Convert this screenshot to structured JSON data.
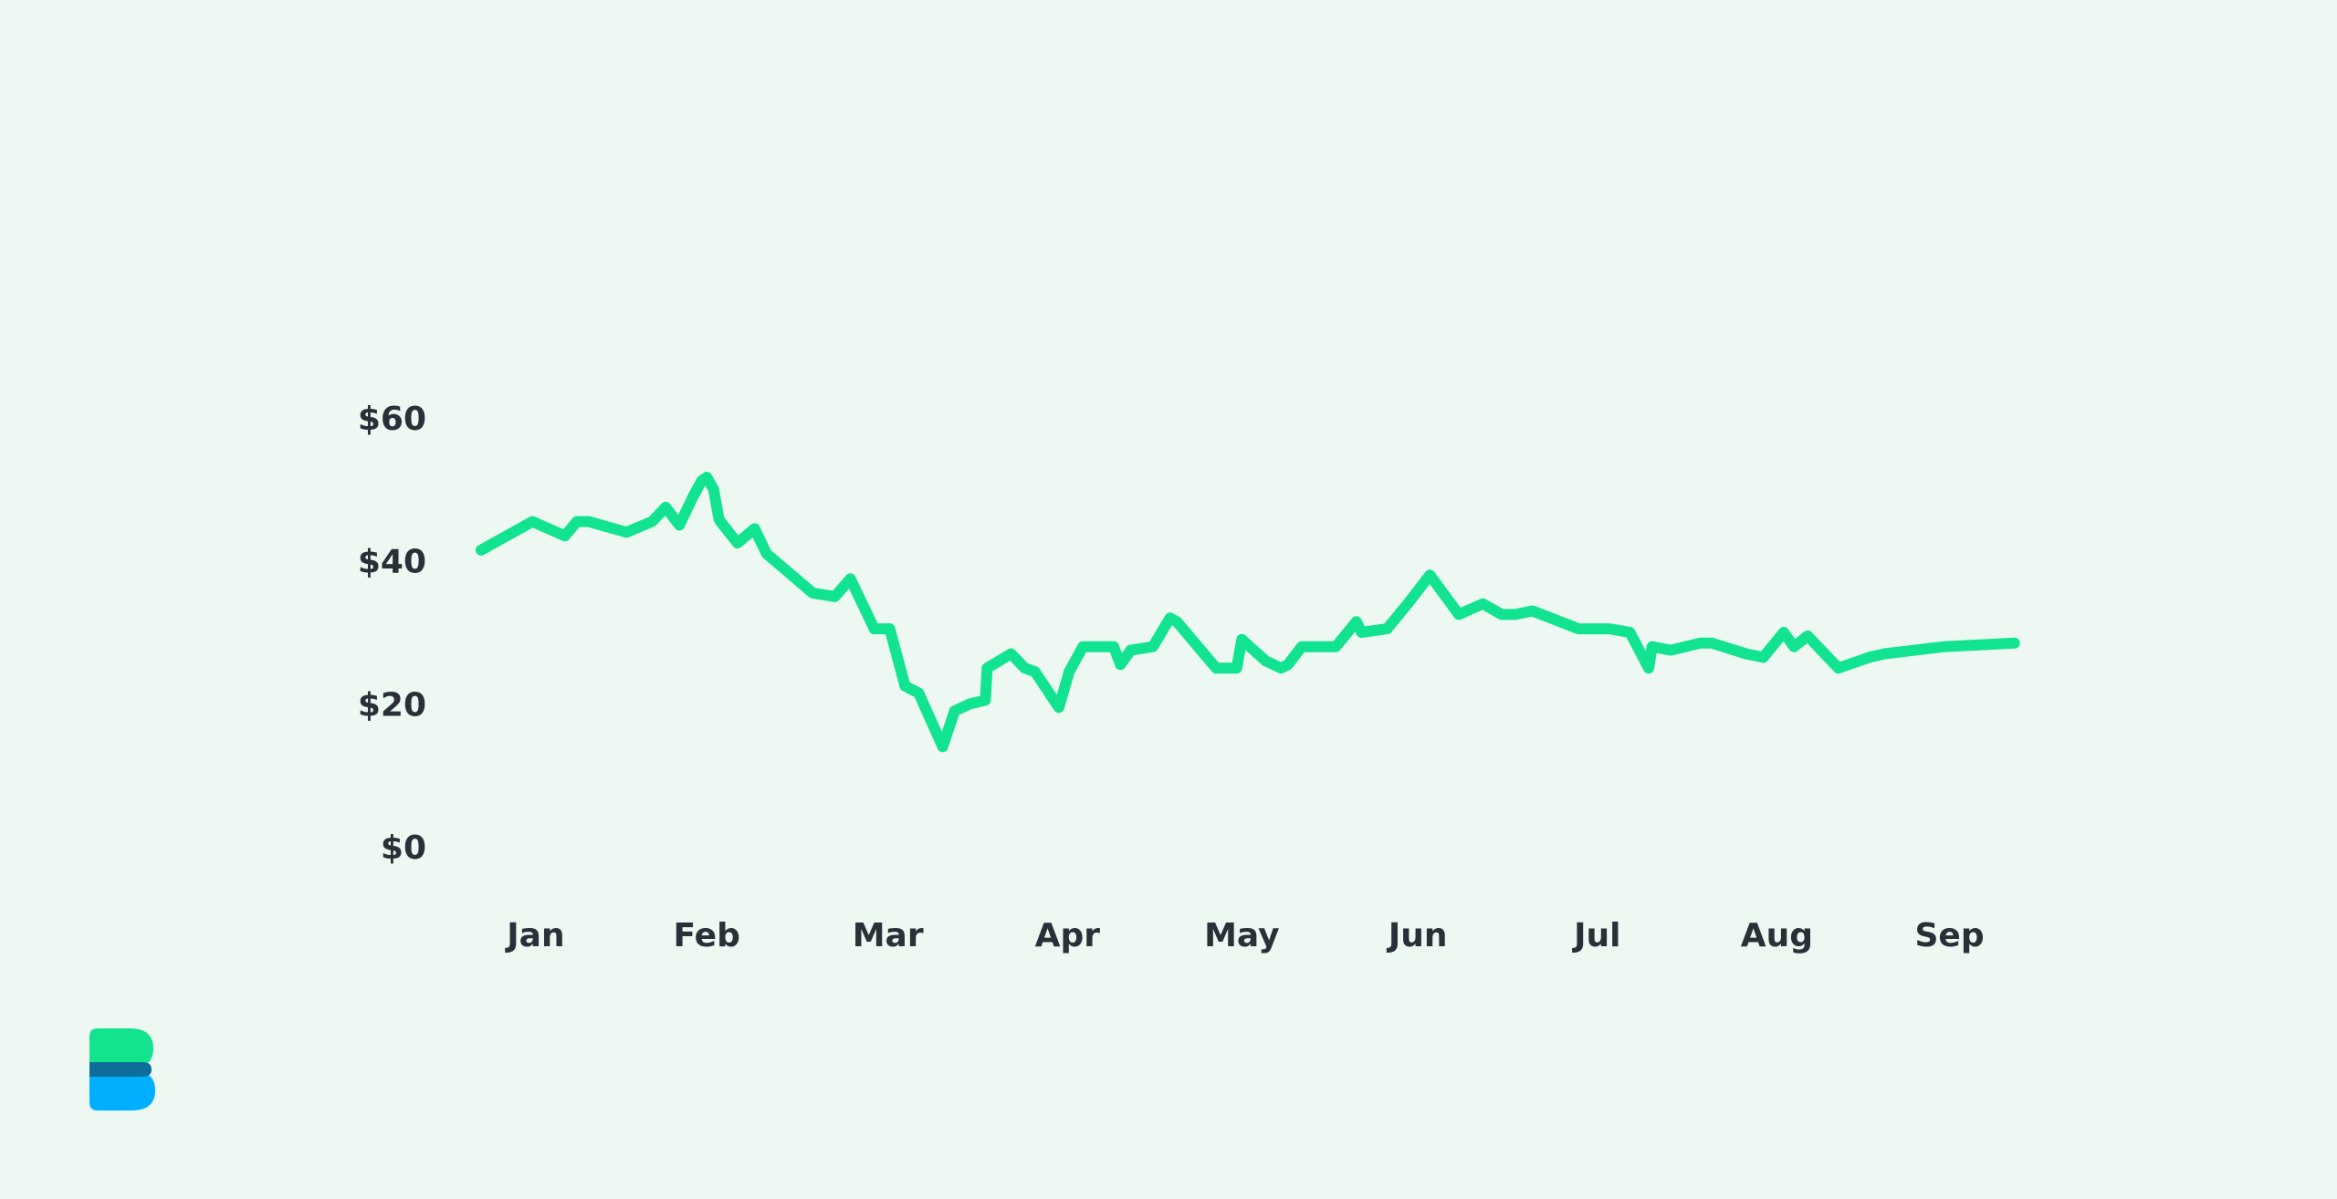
{
  "chart_data": {
    "type": "line",
    "title": "",
    "xlabel": "",
    "ylabel": "",
    "ylim": [
      0,
      60
    ],
    "xlim": [
      0,
      8.87
    ],
    "grid": false,
    "legend": "none",
    "yticks": [
      {
        "value": 0,
        "label": "$0"
      },
      {
        "value": 20,
        "label": "$20"
      },
      {
        "value": 40,
        "label": "$40"
      },
      {
        "value": 60,
        "label": "$60"
      }
    ],
    "xticks": [
      {
        "value": 0.32,
        "label": "Jan"
      },
      {
        "value": 1.32,
        "label": "Feb"
      },
      {
        "value": 2.38,
        "label": "Mar"
      },
      {
        "value": 3.43,
        "label": "Apr"
      },
      {
        "value": 4.45,
        "label": "May"
      },
      {
        "value": 5.48,
        "label": "Jun"
      },
      {
        "value": 6.53,
        "label": "Jul"
      },
      {
        "value": 7.58,
        "label": "Aug"
      },
      {
        "value": 8.59,
        "label": "Sep"
      }
    ],
    "series": [
      {
        "color": "#12e391",
        "x": [
          0,
          0.3,
          0.49,
          0.56,
          0.63,
          0.85,
          1.0,
          1.08,
          1.16,
          1.24,
          1.29,
          1.32,
          1.36,
          1.39,
          1.4,
          1.5,
          1.6,
          1.67,
          1.94,
          2.07,
          2.16,
          2.3,
          2.39,
          2.48,
          2.56,
          2.7,
          2.77,
          2.86,
          2.95,
          2.96,
          3.1,
          3.18,
          3.24,
          3.38,
          3.44,
          3.52,
          3.7,
          3.74,
          3.8,
          3.93,
          4.03,
          4.07,
          4.3,
          4.42,
          4.45,
          4.59,
          4.68,
          4.72,
          4.8,
          4.84,
          5.0,
          5.12,
          5.15,
          5.3,
          5.42,
          5.55,
          5.72,
          5.86,
          5.97,
          6.05,
          6.15,
          6.42,
          6.6,
          6.72,
          6.83,
          6.85,
          6.96,
          7.13,
          7.2,
          7.4,
          7.5,
          7.62,
          7.68,
          7.76,
          7.94,
          8.12,
          8.21,
          8.56,
          8.97
        ],
        "y": [
          41.5,
          45.5,
          43.5,
          45.5,
          45.5,
          44.0,
          45.5,
          47.5,
          45.0,
          49.0,
          51.2,
          51.7,
          50.0,
          46.0,
          45.5,
          42.5,
          44.5,
          41.0,
          35.5,
          35.0,
          37.5,
          30.5,
          30.5,
          22.5,
          21.5,
          14.0,
          19.0,
          20.0,
          20.5,
          25.0,
          27.0,
          25.0,
          24.5,
          19.5,
          24.5,
          28.0,
          28.0,
          25.5,
          27.5,
          28.0,
          32.0,
          31.5,
          25.0,
          25.0,
          29.0,
          26.0,
          25.0,
          25.5,
          28.0,
          28.0,
          28.0,
          31.5,
          30.0,
          30.5,
          34.0,
          38.0,
          32.5,
          34.0,
          32.5,
          32.5,
          33.0,
          30.5,
          30.5,
          30.0,
          25.0,
          28.0,
          27.5,
          28.5,
          28.5,
          27.0,
          26.5,
          30.0,
          28.0,
          29.5,
          25.0,
          26.5,
          27.0,
          28.0,
          28.5
        ]
      }
    ]
  },
  "logo": {
    "name": "brand-b-logo",
    "colors": {
      "top": "#14e38e",
      "bottom": "#00b0ff",
      "band": "#0e6e9a"
    }
  }
}
